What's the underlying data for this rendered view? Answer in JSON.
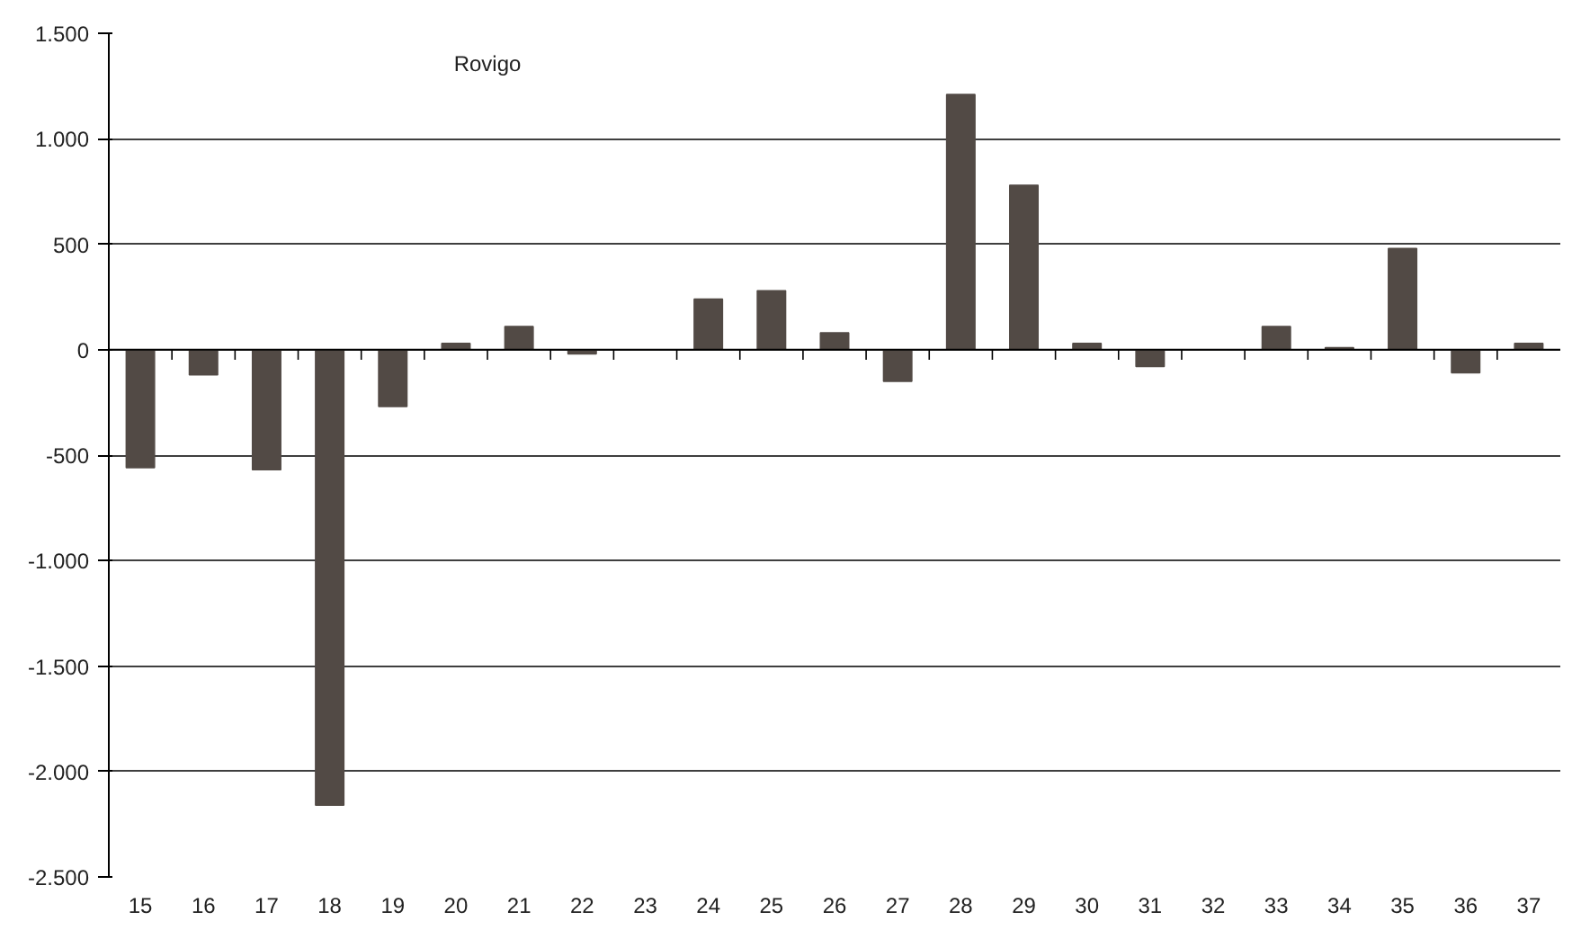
{
  "chart_data": {
    "type": "bar",
    "title": "Rovigo",
    "categories": [
      "15",
      "16",
      "17",
      "18",
      "19",
      "20",
      "21",
      "22",
      "23",
      "24",
      "25",
      "26",
      "27",
      "28",
      "29",
      "30",
      "31",
      "32",
      "33",
      "34",
      "35",
      "36",
      "37"
    ],
    "values": [
      -560,
      -120,
      -570,
      -2160,
      -270,
      30,
      110,
      -20,
      0,
      240,
      280,
      80,
      -150,
      1210,
      780,
      30,
      -80,
      0,
      110,
      10,
      480,
      -110,
      30
    ],
    "color": "#524a45",
    "ylim": [
      -2500,
      1500
    ],
    "yticks": [
      {
        "value": -2500,
        "label": "-2.500"
      },
      {
        "value": -2000,
        "label": "-2.000"
      },
      {
        "value": -1500,
        "label": "-1.500"
      },
      {
        "value": -1000,
        "label": "-1.000"
      },
      {
        "value": -500,
        "label": "-500"
      },
      {
        "value": 0,
        "label": "0"
      },
      {
        "value": 500,
        "label": "500"
      },
      {
        "value": 1000,
        "label": "1.000"
      },
      {
        "value": 1500,
        "label": "1.500"
      }
    ],
    "grid": "y"
  }
}
